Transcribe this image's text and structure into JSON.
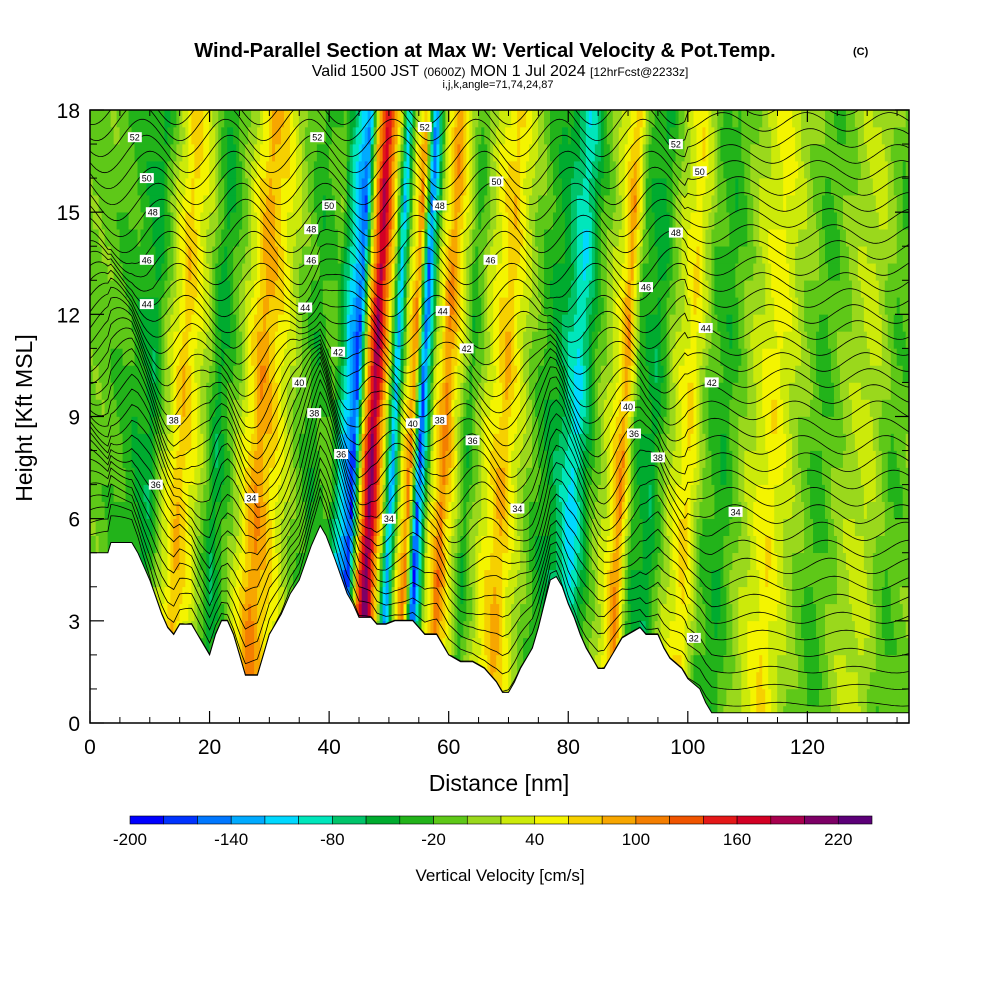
{
  "chart_data": {
    "type": "heatmap",
    "title": "Wind-Parallel Section at Max W: Vertical Velocity & Pot.Temp.",
    "copyright_mark": "(C)",
    "subtitle_parts": [
      "Valid 1500 JST",
      "(0600Z)",
      "MON 1 Jul 2024",
      "[12hrFcst@2233z]"
    ],
    "subsubtitle": "i,j,k,angle=71,74,24,87",
    "xlabel": "Distance [nm]",
    "ylabel": "Height [Kft MSL]",
    "xlim": [
      0,
      137
    ],
    "ylim": [
      0,
      18
    ],
    "x_ticks": [
      "0",
      "20",
      "40",
      "60",
      "80",
      "100",
      "120"
    ],
    "y_ticks": [
      "0",
      "3",
      "6",
      "9",
      "12",
      "15",
      "18"
    ],
    "colorbar": {
      "label": "Vertical Velocity [cm/s]",
      "tick_labels": [
        "-200",
        "-140",
        "-80",
        "-20",
        "40",
        "100",
        "160",
        "220"
      ],
      "levels": [
        -200,
        -180,
        -160,
        -140,
        -120,
        -100,
        -80,
        -60,
        -40,
        -20,
        0,
        20,
        40,
        60,
        80,
        100,
        120,
        140,
        160,
        180,
        200,
        220,
        240
      ],
      "colors": [
        "#0000ff",
        "#0033ff",
        "#0077ff",
        "#00aaff",
        "#00d8ff",
        "#00e6bb",
        "#00c46a",
        "#00ab2f",
        "#22b31a",
        "#5ec818",
        "#9ad81c",
        "#ccea0a",
        "#f4f400",
        "#f6d000",
        "#f7a600",
        "#f47e00",
        "#f05400",
        "#e41818",
        "#d30024",
        "#a8004e",
        "#7d0066",
        "#5c0078"
      ]
    },
    "velocity_columns": [
      {
        "x": 0,
        "v": -10
      },
      {
        "x": 4,
        "v": -30
      },
      {
        "x": 8,
        "v": -60
      },
      {
        "x": 10,
        "v": 10
      },
      {
        "x": 13,
        "v": 90
      },
      {
        "x": 16,
        "v": 30
      },
      {
        "x": 19,
        "v": -60
      },
      {
        "x": 22,
        "v": 0
      },
      {
        "x": 26,
        "v": 110
      },
      {
        "x": 29,
        "v": 60
      },
      {
        "x": 32,
        "v": 0
      },
      {
        "x": 35,
        "v": -40
      },
      {
        "x": 38,
        "v": -10
      },
      {
        "x": 40,
        "v": -110
      },
      {
        "x": 42,
        "v": -190
      },
      {
        "x": 43.5,
        "v": 90
      },
      {
        "x": 45,
        "v": 230
      },
      {
        "x": 47,
        "v": 60
      },
      {
        "x": 48.5,
        "v": -150
      },
      {
        "x": 50,
        "v": 40
      },
      {
        "x": 51.5,
        "v": 120
      },
      {
        "x": 53,
        "v": -190
      },
      {
        "x": 55,
        "v": 30
      },
      {
        "x": 57,
        "v": 120
      },
      {
        "x": 59,
        "v": 40
      },
      {
        "x": 61,
        "v": -40
      },
      {
        "x": 64,
        "v": 40
      },
      {
        "x": 67,
        "v": 90
      },
      {
        "x": 70,
        "v": 20
      },
      {
        "x": 73,
        "v": -30
      },
      {
        "x": 76,
        "v": -60
      },
      {
        "x": 79,
        "v": -120
      },
      {
        "x": 82,
        "v": -20
      },
      {
        "x": 85,
        "v": 40
      },
      {
        "x": 87,
        "v": 110
      },
      {
        "x": 89,
        "v": -30
      },
      {
        "x": 92,
        "v": -60
      },
      {
        "x": 95,
        "v": 20
      },
      {
        "x": 98,
        "v": 70
      },
      {
        "x": 101,
        "v": -20
      },
      {
        "x": 104,
        "v": -40
      },
      {
        "x": 108,
        "v": 20
      },
      {
        "x": 112,
        "v": 60
      },
      {
        "x": 116,
        "v": 10
      },
      {
        "x": 120,
        "v": -30
      },
      {
        "x": 124,
        "v": 10
      },
      {
        "x": 128,
        "v": 30
      },
      {
        "x": 132,
        "v": -20
      },
      {
        "x": 137,
        "v": 0
      }
    ],
    "terrain_kft": [
      [
        0,
        5.0
      ],
      [
        3,
        5.0
      ],
      [
        3.5,
        5.3
      ],
      [
        7,
        5.3
      ],
      [
        8,
        5.0
      ],
      [
        9,
        4.6
      ],
      [
        10,
        4.2
      ],
      [
        11,
        3.7
      ],
      [
        12,
        3.2
      ],
      [
        13,
        2.8
      ],
      [
        14,
        2.6
      ],
      [
        15,
        2.9
      ],
      [
        17,
        2.9
      ],
      [
        18,
        2.6
      ],
      [
        19,
        2.3
      ],
      [
        20,
        2.0
      ],
      [
        21,
        2.6
      ],
      [
        22,
        3.0
      ],
      [
        23,
        3.0
      ],
      [
        24,
        2.6
      ],
      [
        25,
        2.0
      ],
      [
        26,
        1.4
      ],
      [
        28,
        1.4
      ],
      [
        29,
        2.0
      ],
      [
        30,
        2.6
      ],
      [
        32,
        3.2
      ],
      [
        33.5,
        3.8
      ],
      [
        35,
        4.2
      ],
      [
        36,
        4.7
      ],
      [
        37,
        5.2
      ],
      [
        38.5,
        5.8
      ],
      [
        39.5,
        5.5
      ],
      [
        41,
        4.8
      ],
      [
        42,
        4.3
      ],
      [
        43,
        3.8
      ],
      [
        44,
        3.5
      ],
      [
        45,
        3.1
      ],
      [
        47,
        3.1
      ],
      [
        48,
        2.9
      ],
      [
        49.5,
        2.9
      ],
      [
        51,
        3.0
      ],
      [
        54,
        3.0
      ],
      [
        55,
        2.8
      ],
      [
        56,
        2.6
      ],
      [
        58,
        2.6
      ],
      [
        59,
        2.3
      ],
      [
        60,
        2.0
      ],
      [
        62,
        1.8
      ],
      [
        64,
        1.8
      ],
      [
        66,
        1.6
      ],
      [
        67,
        1.4
      ],
      [
        68,
        1.2
      ],
      [
        69,
        0.9
      ],
      [
        70,
        0.9
      ],
      [
        71,
        1.2
      ],
      [
        72,
        1.6
      ],
      [
        74,
        2.2
      ],
      [
        75,
        2.8
      ],
      [
        76,
        3.5
      ],
      [
        77,
        4.2
      ],
      [
        78,
        4.3
      ],
      [
        79,
        4.0
      ],
      [
        80,
        3.5
      ],
      [
        81,
        3.1
      ],
      [
        82,
        2.6
      ],
      [
        83,
        2.2
      ],
      [
        84,
        1.9
      ],
      [
        85,
        1.6
      ],
      [
        86,
        1.6
      ],
      [
        87,
        1.9
      ],
      [
        88,
        2.2
      ],
      [
        89,
        2.5
      ],
      [
        90,
        2.6
      ],
      [
        92,
        2.8
      ],
      [
        93,
        2.6
      ],
      [
        95,
        2.6
      ],
      [
        96,
        2.2
      ],
      [
        97,
        1.9
      ],
      [
        99,
        1.6
      ],
      [
        100,
        1.3
      ],
      [
        102,
        1.0
      ],
      [
        103,
        0.6
      ],
      [
        104,
        0.3
      ],
      [
        137,
        0.3
      ]
    ],
    "isentropes_k": [
      32,
      34,
      36,
      38,
      40,
      42,
      44,
      46,
      48,
      50,
      52
    ],
    "isentrope_labels": [
      {
        "text": "52",
        "x": 7.5,
        "y": 17.2
      },
      {
        "text": "50",
        "x": 9.5,
        "y": 16.0
      },
      {
        "text": "48",
        "x": 10.5,
        "y": 15.0
      },
      {
        "text": "46",
        "x": 9.5,
        "y": 13.6
      },
      {
        "text": "44",
        "x": 9.5,
        "y": 12.3
      },
      {
        "text": "38",
        "x": 14,
        "y": 8.9
      },
      {
        "text": "36",
        "x": 11,
        "y": 7.0
      },
      {
        "text": "34",
        "x": 27,
        "y": 6.6
      },
      {
        "text": "52",
        "x": 38,
        "y": 17.2
      },
      {
        "text": "50",
        "x": 40,
        "y": 15.2
      },
      {
        "text": "48",
        "x": 37,
        "y": 14.5
      },
      {
        "text": "46",
        "x": 37,
        "y": 13.6
      },
      {
        "text": "44",
        "x": 36,
        "y": 12.2
      },
      {
        "text": "42",
        "x": 41.5,
        "y": 10.9
      },
      {
        "text": "40",
        "x": 35,
        "y": 10.0
      },
      {
        "text": "38",
        "x": 37.5,
        "y": 9.1
      },
      {
        "text": "36",
        "x": 42,
        "y": 7.9
      },
      {
        "text": "34",
        "x": 50,
        "y": 6.0
      },
      {
        "text": "52",
        "x": 56,
        "y": 17.5
      },
      {
        "text": "48",
        "x": 58.5,
        "y": 15.2
      },
      {
        "text": "44",
        "x": 59,
        "y": 12.1
      },
      {
        "text": "42",
        "x": 63,
        "y": 11.0
      },
      {
        "text": "40",
        "x": 54,
        "y": 8.8
      },
      {
        "text": "38",
        "x": 58.5,
        "y": 8.9
      },
      {
        "text": "36",
        "x": 64,
        "y": 8.3
      },
      {
        "text": "34",
        "x": 71.5,
        "y": 6.3
      },
      {
        "text": "50",
        "x": 68,
        "y": 15.9
      },
      {
        "text": "46",
        "x": 67,
        "y": 13.6
      },
      {
        "text": "52",
        "x": 98,
        "y": 17.0
      },
      {
        "text": "50",
        "x": 102,
        "y": 16.2
      },
      {
        "text": "48",
        "x": 98,
        "y": 14.4
      },
      {
        "text": "46",
        "x": 93,
        "y": 12.8
      },
      {
        "text": "44",
        "x": 103,
        "y": 11.6
      },
      {
        "text": "42",
        "x": 104,
        "y": 10.0
      },
      {
        "text": "40",
        "x": 90,
        "y": 9.3
      },
      {
        "text": "36",
        "x": 91,
        "y": 8.5
      },
      {
        "text": "38",
        "x": 95,
        "y": 7.8
      },
      {
        "text": "34",
        "x": 108,
        "y": 6.2
      },
      {
        "text": "32",
        "x": 101,
        "y": 2.5
      }
    ],
    "grid": false,
    "legend": "bottom"
  }
}
